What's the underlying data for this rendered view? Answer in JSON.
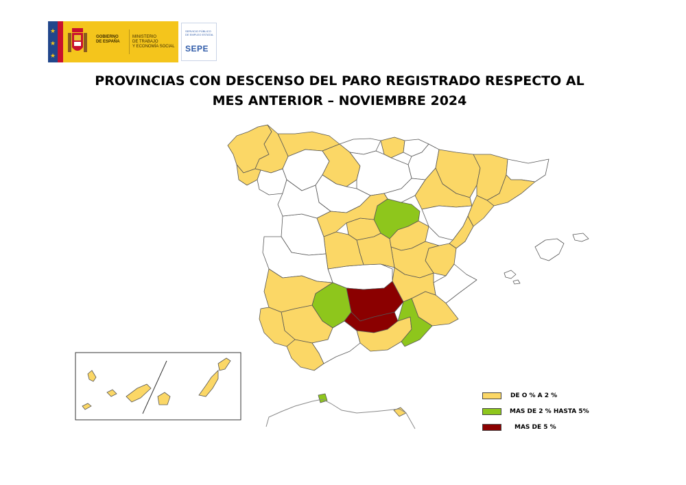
{
  "header": {
    "logo_gobierno": "GOBIERNO\nDE ESPAÑA",
    "logo_ministerio": "MINISTERIO\nDE TRABAJO\nY ECONOMÍA SOCIAL",
    "logo_sepe_small": "SERVICIO PÚBLICO\nDE EMPLEO ESTATAL",
    "logo_sepe": "SEPE"
  },
  "title": {
    "line1": "PROVINCIAS CON DESCENSO DEL PARO REGISTRADO RESPECTO AL",
    "line2": "MES ANTERIOR – NOVIEMBRE 2024"
  },
  "colors": {
    "low": "#fbd766",
    "mid": "#8ec61c",
    "high": "#8b0000",
    "none": "#ffffff",
    "border": "#555555"
  },
  "legend": [
    {
      "key": "low",
      "label": "DE O % A  2 %"
    },
    {
      "key": "mid",
      "label": "MAS DE 2 % HASTA 5%"
    },
    {
      "key": "high",
      "label": "MAS DE 5 %"
    }
  ],
  "map": {
    "provinces": [
      {
        "name": "A Coruña",
        "class": "low"
      },
      {
        "name": "Lugo",
        "class": "low"
      },
      {
        "name": "Asturias",
        "class": "low"
      },
      {
        "name": "Cantabria",
        "class": "none"
      },
      {
        "name": "Bizkaia",
        "class": "low"
      },
      {
        "name": "Gipuzkoa",
        "class": "none"
      },
      {
        "name": "Navarra",
        "class": "none"
      },
      {
        "name": "Huesca",
        "class": "low"
      },
      {
        "name": "Lleida",
        "class": "low"
      },
      {
        "name": "Girona",
        "class": "none"
      },
      {
        "name": "Barcelona",
        "class": "low"
      },
      {
        "name": "Tarragona",
        "class": "low"
      },
      {
        "name": "Zaragoza",
        "class": "low"
      },
      {
        "name": "Teruel",
        "class": "none"
      },
      {
        "name": "Castellón",
        "class": "low"
      },
      {
        "name": "Valencia",
        "class": "low"
      },
      {
        "name": "Alicante",
        "class": "none"
      },
      {
        "name": "Soria",
        "class": "mid"
      },
      {
        "name": "Guadalajara",
        "class": "low"
      },
      {
        "name": "Cuenca",
        "class": "low"
      },
      {
        "name": "Albacete",
        "class": "low"
      },
      {
        "name": "Murcia",
        "class": "low"
      },
      {
        "name": "Toledo",
        "class": "none"
      },
      {
        "name": "Ciudad Real",
        "class": "high"
      },
      {
        "name": "Badajoz",
        "class": "low"
      },
      {
        "name": "Córdoba",
        "class": "mid"
      },
      {
        "name": "Jaén",
        "class": "high"
      },
      {
        "name": "Granada",
        "class": "low"
      },
      {
        "name": "Almería",
        "class": "mid"
      },
      {
        "name": "Sevilla",
        "class": "low"
      },
      {
        "name": "Huelva",
        "class": "low"
      },
      {
        "name": "Cádiz",
        "class": "low"
      },
      {
        "name": "Málaga",
        "class": "none"
      },
      {
        "name": "Madrid",
        "class": "low"
      },
      {
        "name": "Segovia",
        "class": "low"
      },
      {
        "name": "Ávila",
        "class": "low"
      },
      {
        "name": "Salamanca",
        "class": "none"
      },
      {
        "name": "Cáceres",
        "class": "none"
      },
      {
        "name": "Palencia",
        "class": "low"
      },
      {
        "name": "Ourense",
        "class": "none"
      },
      {
        "name": "Pontevedra",
        "class": "low"
      },
      {
        "name": "León",
        "class": "none"
      },
      {
        "name": "Burgos",
        "class": "none"
      },
      {
        "name": "Valladolid",
        "class": "none"
      },
      {
        "name": "Zamora",
        "class": "none"
      },
      {
        "name": "La Rioja",
        "class": "none"
      },
      {
        "name": "Islas Baleares",
        "class": "none"
      },
      {
        "name": "Las Palmas",
        "class": "low"
      },
      {
        "name": "Santa Cruz de Tenerife",
        "class": "low"
      },
      {
        "name": "Ceuta",
        "class": "mid"
      },
      {
        "name": "Melilla",
        "class": "low"
      }
    ]
  }
}
